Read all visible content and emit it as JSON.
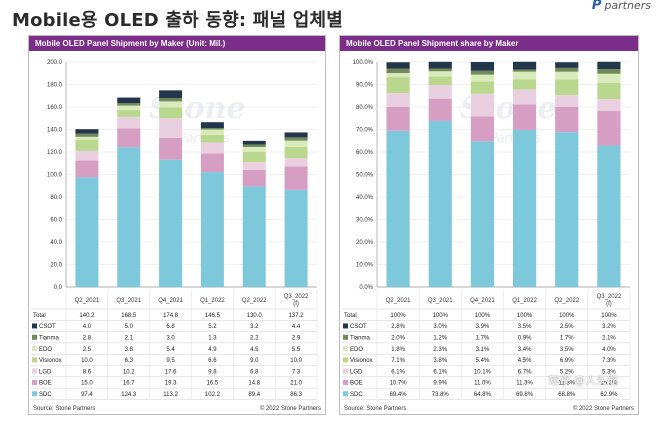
{
  "page_title": "Mobile용 OLED 출하 동향: 패널 업체별",
  "logo_text": "partners",
  "watermark_line1": "Stone",
  "watermark_line2": "Partners",
  "overlay_text": "知乎 @人头能",
  "colors": {
    "title_bar": "#7b2d8a",
    "SDC": "#7ec8dc",
    "BOE": "#d59ec2",
    "LGD": "#e9cfe0",
    "Visionox": "#b9d88d",
    "EDO": "#d9eabc",
    "Tianma": "#6f8a58",
    "CSOT": "#24364c"
  },
  "chart_data": [
    {
      "type": "bar",
      "stacked": true,
      "title": "Mobile OLED Panel Shipment by Maker (Unit: Mil.)",
      "categories": [
        "Q2_2021",
        "Q3_2021",
        "Q4_2021",
        "Q1_2022",
        "Q2_2022",
        "Q3_2022 (f)"
      ],
      "ylim": [
        0,
        200
      ],
      "yticks": [
        "0.0",
        "20.0",
        "40.0",
        "60.0",
        "80.0",
        "100.0",
        "120.0",
        "140.0",
        "160.0",
        "180.0",
        "200.0"
      ],
      "totals_label": "Total",
      "totals": [
        "140.2",
        "168.5",
        "174.8",
        "146.5",
        "130.0",
        "137.2"
      ],
      "totals_values": [
        140.2,
        168.5,
        174.8,
        146.5,
        130.0,
        137.2
      ],
      "series": [
        {
          "name": "CSOT",
          "values": [
            4.0,
            5.0,
            6.8,
            5.2,
            3.2,
            4.4
          ],
          "labels": [
            "4.0",
            "5.0",
            "6.8",
            "5.2",
            "3.2",
            "4.4"
          ]
        },
        {
          "name": "Tianma",
          "values": [
            2.8,
            2.1,
            3.0,
            1.3,
            2.2,
            2.9
          ],
          "labels": [
            "2.8",
            "2.1",
            "3.0",
            "1.3",
            "2.2",
            "2.9"
          ]
        },
        {
          "name": "EDO",
          "values": [
            2.5,
            3.8,
            5.4,
            4.9,
            4.5,
            5.5
          ],
          "labels": [
            "2.5",
            "3.8",
            "5.4",
            "4.9",
            "4.5",
            "5.5"
          ]
        },
        {
          "name": "Visionox",
          "values": [
            10.0,
            6.3,
            9.5,
            6.6,
            9.0,
            10.0
          ],
          "labels": [
            "10.0",
            "6.3",
            "9.5",
            "6.6",
            "9.0",
            "10.0"
          ]
        },
        {
          "name": "LGD",
          "values": [
            8.6,
            10.2,
            17.6,
            9.8,
            6.8,
            7.3
          ],
          "labels": [
            "8.6",
            "10.2",
            "17.6",
            "9.8",
            "6.8",
            "7.3"
          ]
        },
        {
          "name": "BOE",
          "values": [
            15.0,
            16.7,
            19.3,
            16.5,
            14.8,
            21.0
          ],
          "labels": [
            "15.0",
            "16.7",
            "19.3",
            "16.5",
            "14.8",
            "21.0"
          ]
        },
        {
          "name": "SDC",
          "values": [
            97.4,
            124.3,
            113.2,
            102.2,
            89.4,
            86.3
          ],
          "labels": [
            "97.4",
            "124.3",
            "113.2",
            "102.2",
            "89.4",
            "86.3"
          ]
        }
      ],
      "source": "Source: Stone Partners",
      "copyright": "© 2022 Stone Partners"
    },
    {
      "type": "bar",
      "stacked": true,
      "title": "Mobile OLED Panel Shipment share by Maker",
      "categories": [
        "Q2_2021",
        "Q3_2021",
        "Q4_2021",
        "Q1_2022",
        "Q2_2022",
        "Q3_2022 (f)"
      ],
      "ylim": [
        0,
        100
      ],
      "yticks": [
        "0.0%",
        "10.0%",
        "20.0%",
        "30.0%",
        "40.0%",
        "50.0%",
        "60.0%",
        "70.0%",
        "80.0%",
        "90.0%",
        "100.0%"
      ],
      "totals_label": "Total",
      "totals": [
        "100%",
        "100%",
        "100%",
        "100%",
        "100%",
        "100%"
      ],
      "totals_values": [
        100,
        100,
        100,
        100,
        100,
        100
      ],
      "series": [
        {
          "name": "CSOT",
          "values": [
            2.8,
            3.0,
            3.9,
            3.5,
            2.5,
            3.2
          ],
          "labels": [
            "2.8%",
            "3.0%",
            "3.9%",
            "3.5%",
            "2.5%",
            "3.2%"
          ]
        },
        {
          "name": "Tianma",
          "values": [
            2.0,
            1.2,
            1.7,
            0.9,
            1.7,
            2.1
          ],
          "labels": [
            "2.0%",
            "1.2%",
            "1.7%",
            "0.9%",
            "1.7%",
            "2.1%"
          ]
        },
        {
          "name": "EDO",
          "values": [
            1.8,
            2.3,
            3.1,
            3.4,
            3.5,
            4.0
          ],
          "labels": [
            "1.8%",
            "2.3%",
            "3.1%",
            "3.4%",
            "3.5%",
            "4.0%"
          ]
        },
        {
          "name": "Visionox",
          "values": [
            7.1,
            3.8,
            5.4,
            4.5,
            6.9,
            7.3
          ],
          "labels": [
            "7.1%",
            "3.8%",
            "5.4%",
            "4.5%",
            "6.9%",
            "7.3%"
          ]
        },
        {
          "name": "LGD",
          "values": [
            6.1,
            6.1,
            10.1,
            6.7,
            5.2,
            5.3
          ],
          "labels": [
            "6.1%",
            "6.1%",
            "10.1%",
            "6.7%",
            "5.2%",
            "5.3%"
          ]
        },
        {
          "name": "BOE",
          "values": [
            10.7,
            9.9,
            11.0,
            11.3,
            11.3,
            15.3
          ],
          "labels": [
            "10.7%",
            "9.9%",
            "11.0%",
            "11.3%",
            "11.3%",
            "15.3%"
          ]
        },
        {
          "name": "SDC",
          "values": [
            69.4,
            73.8,
            64.8,
            69.8,
            68.8,
            62.9
          ],
          "labels": [
            "69.4%",
            "73.8%",
            "64.8%",
            "69.8%",
            "68.8%",
            "62.9%"
          ]
        }
      ],
      "source": "Source: Stone Partners",
      "copyright": "© 2022 Stone Partners"
    }
  ]
}
